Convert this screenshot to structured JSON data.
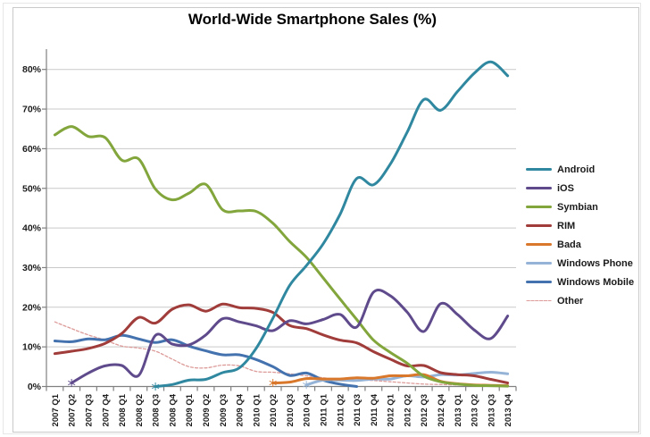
{
  "window": {
    "background": "#FFFFFF",
    "outer_border_color": "#E7E7E7",
    "inner_border_color": "#C9C9C9"
  },
  "chart_data": {
    "type": "line",
    "title": "World-Wide Smartphone Sales (%)",
    "grid": true,
    "legend_position": "right",
    "x_categories": [
      "2007 Q1",
      "2007 Q2",
      "2007 Q3",
      "2007 Q4",
      "2008 Q1",
      "2008 Q2",
      "2008 Q3",
      "2008 Q4",
      "2009 Q1",
      "2009 Q2",
      "2009 Q3",
      "2009 Q4",
      "2010 Q1",
      "2010 Q2",
      "2010 Q3",
      "2010 Q4",
      "2011 Q1",
      "2011 Q2",
      "2011 Q3",
      "2011 Q4",
      "2012 Q1",
      "2012 Q2",
      "2012 Q3",
      "2012 Q4",
      "2013 Q1",
      "2013 Q2",
      "2013 Q3",
      "2013 Q4"
    ],
    "y_axis": {
      "min": 0,
      "max": 80,
      "step": 10,
      "labels": [
        "0%",
        "10%",
        "20%",
        "30%",
        "40%",
        "50%",
        "60%",
        "70%",
        "80%"
      ],
      "grid_color": "#C9C9C9",
      "axis_color": "#808080"
    },
    "series": [
      {
        "name": "Android",
        "color": "#2F889F",
        "width": 3,
        "dash": null,
        "start_marker": true,
        "values": [
          null,
          null,
          null,
          null,
          null,
          null,
          0,
          0.5,
          1.6,
          1.8,
          3.5,
          4.7,
          9.6,
          17.2,
          25.5,
          30.5,
          36,
          43.4,
          52.5,
          50.9,
          56.1,
          64.1,
          72.4,
          69.7,
          74.4,
          79,
          81.9,
          78.4
        ]
      },
      {
        "name": "iOS",
        "color": "#5F4B8C",
        "width": 3,
        "dash": null,
        "start_marker": true,
        "values": [
          null,
          0.9,
          3.4,
          5.2,
          5.3,
          2.8,
          12.9,
          10.7,
          10.5,
          13,
          17.1,
          16.3,
          15.3,
          14.1,
          16.6,
          15.8,
          16.9,
          18.2,
          15,
          23.8,
          22.9,
          18.8,
          13.9,
          20.9,
          18.2,
          14.3,
          12.1,
          17.8
        ]
      },
      {
        "name": "Symbian",
        "color": "#82A53C",
        "width": 3,
        "dash": null,
        "start_marker": false,
        "values": [
          63.5,
          65.6,
          63.1,
          62.8,
          57.1,
          57.4,
          49.8,
          47.1,
          48.8,
          51,
          44.6,
          44.3,
          44.2,
          41.2,
          36.6,
          32.6,
          27.4,
          22.1,
          16.9,
          11.7,
          8.6,
          5.9,
          2.6,
          1.2,
          0.6,
          0.3,
          0.2,
          0.1
        ]
      },
      {
        "name": "RIM",
        "color": "#A03C3A",
        "width": 3,
        "dash": null,
        "start_marker": false,
        "values": [
          8.3,
          8.9,
          9.6,
          10.9,
          13.4,
          17.4,
          16,
          19.5,
          20.6,
          19,
          20.8,
          19.9,
          19.7,
          18.7,
          15.4,
          14.6,
          13,
          11.7,
          11,
          8.8,
          6.9,
          5.2,
          5.3,
          3.5,
          3,
          2.7,
          1.8,
          0.9
        ]
      },
      {
        "name": "Bada",
        "color": "#D9772A",
        "width": 3,
        "dash": null,
        "start_marker": true,
        "values": [
          null,
          null,
          null,
          null,
          null,
          null,
          null,
          null,
          null,
          null,
          null,
          null,
          null,
          0.9,
          1.1,
          2,
          1.9,
          1.9,
          2.2,
          2.1,
          2.7,
          2.7,
          3,
          1.3,
          0.7,
          0.4,
          0.3,
          0.2
        ]
      },
      {
        "name": "Windows Phone",
        "color": "#95B3D7",
        "width": 3,
        "dash": null,
        "start_marker": true,
        "values": [
          null,
          null,
          null,
          null,
          null,
          null,
          null,
          null,
          null,
          null,
          null,
          null,
          null,
          null,
          null,
          0.4,
          1.6,
          1.6,
          1.5,
          1.9,
          1.9,
          2.7,
          2.4,
          3,
          2.9,
          3.3,
          3.6,
          3.2
        ]
      },
      {
        "name": "Windows Mobile",
        "color": "#4472AE",
        "width": 3,
        "dash": null,
        "start_marker": false,
        "values": [
          11.5,
          11.3,
          12,
          11.8,
          12.9,
          12,
          11.1,
          11.8,
          10.2,
          9,
          8,
          8,
          6.8,
          5,
          2.8,
          3.4,
          1.6,
          0.6,
          0,
          null,
          null,
          null,
          null,
          null,
          null,
          null,
          null,
          null
        ]
      },
      {
        "name": "Other",
        "color": "#DC9B99",
        "width": 1.3,
        "dash": "3 2.2",
        "start_marker": false,
        "values": [
          16.3,
          14.6,
          13,
          11.7,
          10.2,
          9.7,
          8.9,
          6.9,
          5,
          4.7,
          5.4,
          5.2,
          3.8,
          3.6,
          3.2,
          2.7,
          2.2,
          1.7,
          1.7,
          1.5,
          1.2,
          0.9,
          0.6,
          0.5,
          0.4,
          0.3,
          0.3,
          0.3
        ]
      }
    ]
  }
}
